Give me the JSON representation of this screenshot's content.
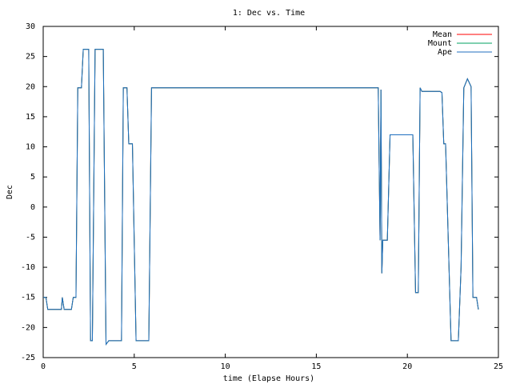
{
  "chart_data": {
    "type": "line",
    "title": "1: Dec vs. Time",
    "x_label": "time (Elapse Hours)",
    "y_label": "Dec",
    "x": [
      0,
      0.15,
      0.25,
      1.0,
      1.05,
      1.15,
      1.55,
      1.65,
      1.8,
      1.9,
      2.1,
      2.2,
      2.5,
      2.6,
      2.7,
      2.85,
      3.3,
      3.45,
      3.6,
      4.3,
      4.4,
      4.6,
      4.7,
      4.9,
      5.1,
      5.8,
      5.95,
      18.4,
      18.5,
      18.55,
      18.6,
      18.65,
      18.9,
      19.05,
      20.3,
      20.45,
      20.6,
      20.7,
      20.8,
      21.8,
      21.9,
      22.0,
      22.1,
      22.4,
      22.8,
      22.95,
      23.1,
      23.3,
      23.5,
      23.6,
      23.8,
      23.9
    ],
    "series": [
      {
        "name": "Mean",
        "color": "#ff0000",
        "values": [
          -15,
          -15,
          -17,
          -17,
          -15,
          -17,
          -17,
          -15,
          -15,
          19.8,
          19.8,
          26.2,
          26.2,
          -22.2,
          -22.2,
          26.2,
          26.2,
          -22.8,
          -22.2,
          -22.2,
          19.8,
          19.8,
          10.5,
          10.5,
          -22.2,
          -22.2,
          19.8,
          19.8,
          -5.5,
          19.5,
          -11,
          -5.5,
          -5.5,
          12,
          12,
          -14.2,
          -14.2,
          19.8,
          19.2,
          19.2,
          19,
          10.5,
          10.5,
          -22.2,
          -22.2,
          -10,
          19.8,
          21.3,
          20,
          -15,
          -15,
          -17
        ]
      },
      {
        "name": "Mount",
        "color": "#00a060",
        "values": [
          -15,
          -15,
          -17,
          -17,
          -15,
          -17,
          -17,
          -15,
          -15,
          19.8,
          19.8,
          26.2,
          26.2,
          -22.2,
          -22.2,
          26.2,
          26.2,
          -22.8,
          -22.2,
          -22.2,
          19.8,
          19.8,
          10.5,
          10.5,
          -22.2,
          -22.2,
          19.8,
          19.8,
          -5.5,
          19.5,
          -11,
          -5.5,
          -5.5,
          12,
          12,
          -14.2,
          -14.2,
          19.8,
          19.2,
          19.2,
          19,
          10.5,
          10.5,
          -22.2,
          -22.2,
          -10,
          19.8,
          21.3,
          20,
          -15,
          -15,
          -17
        ]
      },
      {
        "name": "Ape",
        "color": "#1f6fbf",
        "values": [
          -15,
          -15,
          -17,
          -17,
          -15,
          -17,
          -17,
          -15,
          -15,
          19.8,
          19.8,
          26.2,
          26.2,
          -22.2,
          -22.2,
          26.2,
          26.2,
          -22.8,
          -22.2,
          -22.2,
          19.8,
          19.8,
          10.5,
          10.5,
          -22.2,
          -22.2,
          19.8,
          19.8,
          -5.5,
          19.5,
          -11,
          -5.5,
          -5.5,
          12,
          12,
          -14.2,
          -14.2,
          19.8,
          19.2,
          19.2,
          19,
          10.5,
          10.5,
          -22.2,
          -22.2,
          -10,
          19.8,
          21.3,
          20,
          -15,
          -15,
          -17
        ]
      }
    ],
    "xlim": [
      0,
      25
    ],
    "xticks": [
      0,
      5,
      10,
      15,
      20,
      25
    ],
    "ylim": [
      -25,
      30
    ],
    "yticks": [
      -25,
      -20,
      -15,
      -10,
      -5,
      0,
      5,
      10,
      15,
      20,
      25,
      30
    ],
    "legend": "top-right"
  }
}
